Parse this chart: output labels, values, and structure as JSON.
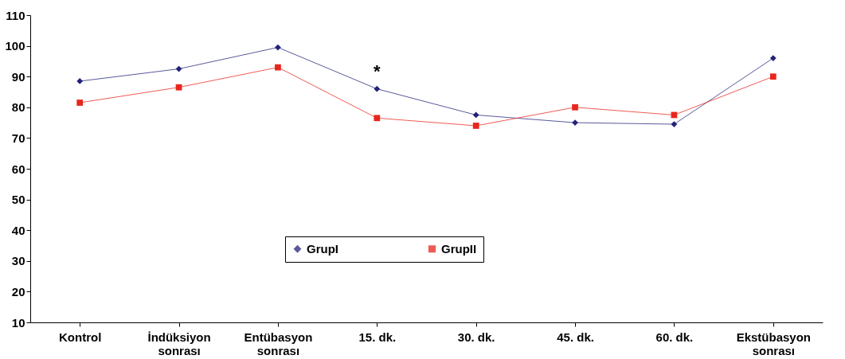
{
  "chart_data": {
    "type": "line",
    "categories": [
      "Kontrol",
      "İndüksiyon\nsonrası",
      "Entübasyon\nsonrası",
      "15. dk.",
      "30. dk.",
      "45. dk.",
      "60. dk.",
      "Ekstübasyon\nsonrası"
    ],
    "series": [
      {
        "name": "GrupI",
        "color": "#22227a",
        "marker": "diamond",
        "values": [
          88.5,
          92.5,
          99.5,
          86,
          77.5,
          75,
          74.5,
          96
        ]
      },
      {
        "name": "GrupII",
        "color": "#e8261c",
        "marker": "square",
        "values": [
          81.5,
          86.5,
          93,
          76.5,
          74,
          80,
          77.5,
          90
        ]
      }
    ],
    "ylim": [
      10,
      110
    ],
    "yticks": [
      10,
      20,
      30,
      40,
      50,
      60,
      70,
      80,
      90,
      100,
      110
    ],
    "grid": false,
    "legend": "bottom",
    "annotations": [
      {
        "text": "*",
        "x": "15. dk.",
        "y": 86
      }
    ]
  }
}
